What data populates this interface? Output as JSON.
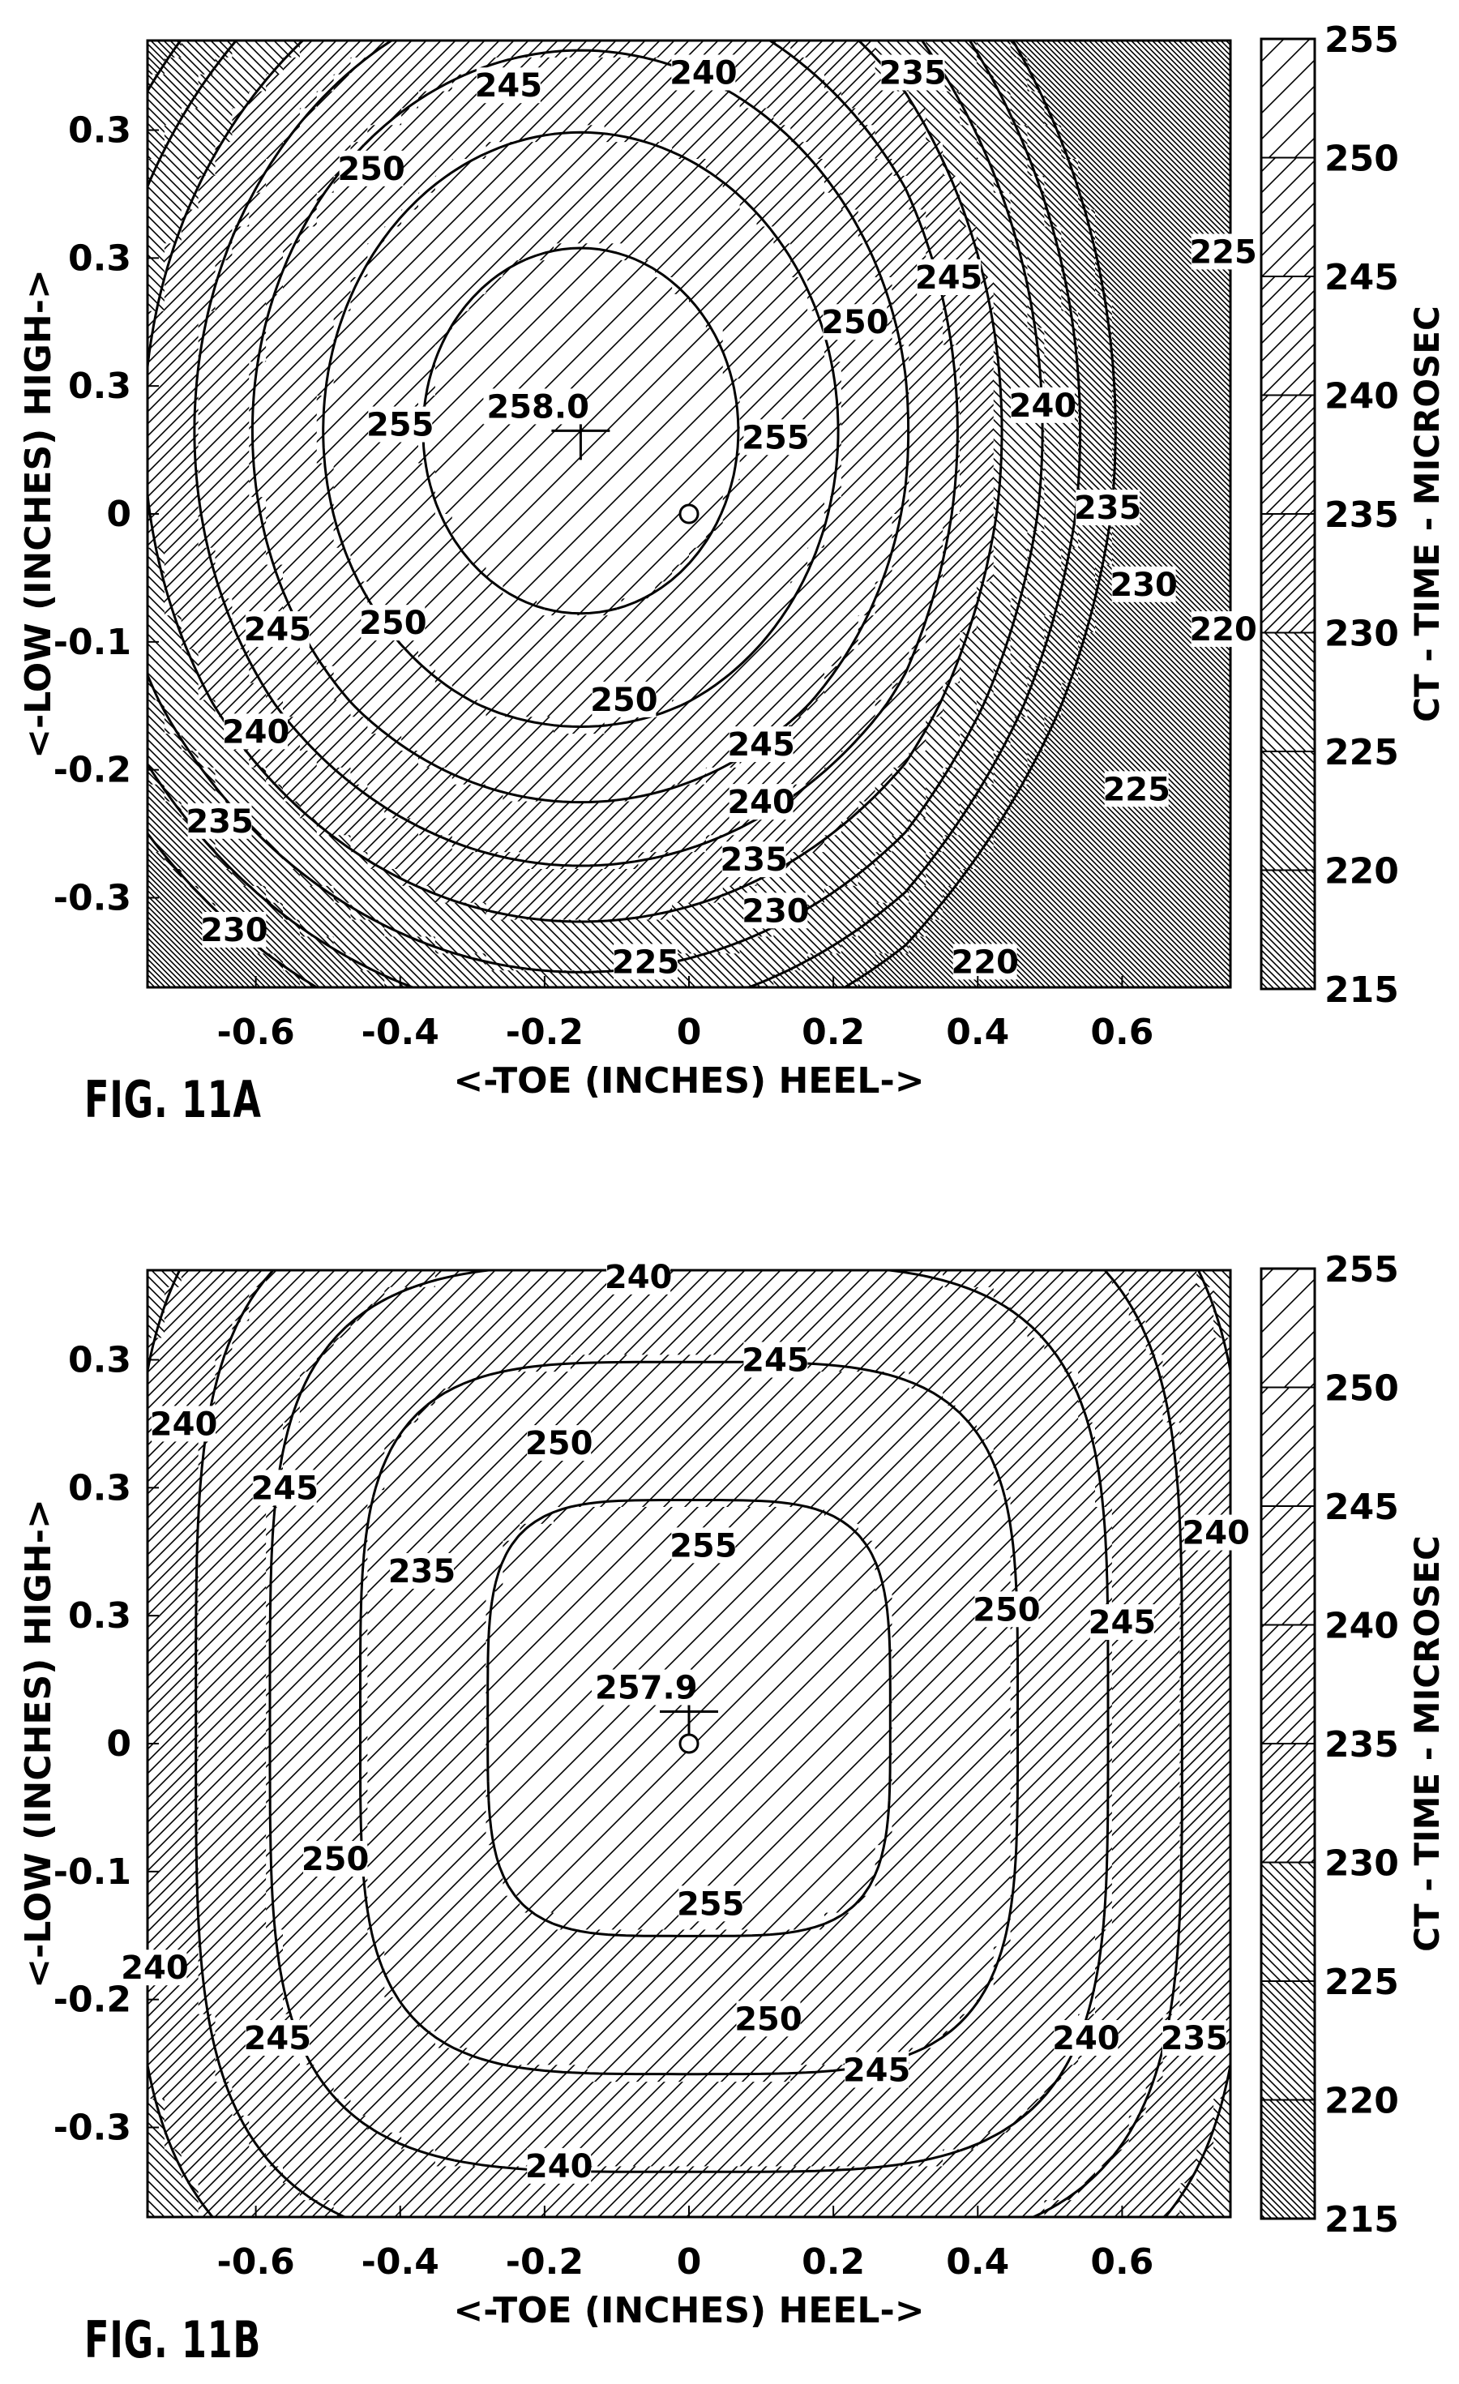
{
  "chart_data": [
    {
      "type": "contour",
      "figure_label": "FIG. 11A",
      "xlabel": "<-TOE (INCHES) HEEL->",
      "ylabel": "<-LOW (INCHES) HIGH->",
      "colorbar_label": "CT - TIME - MICROSEC",
      "x_ticks": [
        "-0.6",
        "-0.4",
        "-0.2",
        "0",
        "0.2",
        "0.4",
        "0.6"
      ],
      "y_ticks": [
        "0.3",
        "0.3",
        "0.3",
        "0",
        "-0.1",
        "-0.2",
        "-0.3"
      ],
      "xlim": [
        -0.75,
        0.75
      ],
      "ylim": [
        -0.37,
        0.37
      ],
      "colorbar_ticks": [
        "255",
        "250",
        "245",
        "240",
        "235",
        "230",
        "225",
        "220",
        "215"
      ],
      "levels": [
        255,
        250,
        245,
        240,
        235,
        230,
        225,
        220
      ],
      "max_label": "258.0",
      "max_point": [
        -0.15,
        0.065
      ],
      "origin_marker": [
        0,
        0
      ],
      "contour_labels": [
        {
          "text": "245",
          "x": -0.25,
          "y": 0.335
        },
        {
          "text": "240",
          "x": 0.02,
          "y": 0.345
        },
        {
          "text": "235",
          "x": 0.31,
          "y": 0.345
        },
        {
          "text": "250",
          "x": -0.44,
          "y": 0.27
        },
        {
          "text": "250",
          "x": 0.23,
          "y": 0.15
        },
        {
          "text": "245",
          "x": 0.36,
          "y": 0.185
        },
        {
          "text": "255",
          "x": -0.4,
          "y": 0.07
        },
        {
          "text": "255",
          "x": 0.12,
          "y": 0.06
        },
        {
          "text": "240",
          "x": 0.49,
          "y": 0.085
        },
        {
          "text": "235",
          "x": 0.58,
          "y": 0.005
        },
        {
          "text": "225",
          "x": 0.74,
          "y": 0.205
        },
        {
          "text": "230",
          "x": 0.63,
          "y": -0.055
        },
        {
          "text": "220",
          "x": 0.74,
          "y": -0.09
        },
        {
          "text": "245",
          "x": -0.57,
          "y": -0.09
        },
        {
          "text": "250",
          "x": -0.41,
          "y": -0.085
        },
        {
          "text": "250",
          "x": -0.09,
          "y": -0.145
        },
        {
          "text": "240",
          "x": -0.6,
          "y": -0.17
        },
        {
          "text": "245",
          "x": 0.1,
          "y": -0.18
        },
        {
          "text": "240",
          "x": 0.1,
          "y": -0.225
        },
        {
          "text": "235",
          "x": -0.65,
          "y": -0.24
        },
        {
          "text": "235",
          "x": 0.09,
          "y": -0.27
        },
        {
          "text": "230",
          "x": 0.12,
          "y": -0.31
        },
        {
          "text": "225",
          "x": 0.62,
          "y": -0.215
        },
        {
          "text": "230",
          "x": -0.63,
          "y": -0.325
        },
        {
          "text": "225",
          "x": -0.06,
          "y": -0.35
        },
        {
          "text": "220",
          "x": 0.41,
          "y": -0.35
        }
      ]
    },
    {
      "type": "contour",
      "figure_label": "FIG. 11B",
      "xlabel": "<-TOE (INCHES) HEEL->",
      "ylabel": "<-LOW (INCHES) HIGH->",
      "colorbar_label": "CT - TIME - MICROSEC",
      "x_ticks": [
        "-0.6",
        "-0.4",
        "-0.2",
        "0",
        "0.2",
        "0.4",
        "0.6"
      ],
      "y_ticks": [
        "0.3",
        "0.3",
        "0.3",
        "0",
        "-0.1",
        "-0.2",
        "-0.3"
      ],
      "xlim": [
        -0.75,
        0.75
      ],
      "ylim": [
        -0.37,
        0.37
      ],
      "colorbar_ticks": [
        "255",
        "250",
        "245",
        "240",
        "235",
        "230",
        "225",
        "220",
        "215"
      ],
      "levels": [
        255,
        250,
        245,
        240,
        235
      ],
      "max_label": "257.9",
      "max_point": [
        0.0,
        0.025
      ],
      "origin_marker": [
        0,
        0
      ],
      "contour_labels": [
        {
          "text": "240",
          "x": -0.07,
          "y": 0.365
        },
        {
          "text": "245",
          "x": 0.12,
          "y": 0.3
        },
        {
          "text": "250",
          "x": -0.18,
          "y": 0.235
        },
        {
          "text": "240",
          "x": -0.7,
          "y": 0.25
        },
        {
          "text": "245",
          "x": -0.56,
          "y": 0.2
        },
        {
          "text": "235",
          "x": -0.37,
          "y": 0.135
        },
        {
          "text": "255",
          "x": 0.02,
          "y": 0.155
        },
        {
          "text": "250",
          "x": 0.44,
          "y": 0.105
        },
        {
          "text": "245",
          "x": 0.6,
          "y": 0.095
        },
        {
          "text": "240",
          "x": 0.73,
          "y": 0.165
        },
        {
          "text": "257.9",
          "x": -0.09,
          "y": 0.04
        },
        {
          "text": "255",
          "x": 0.03,
          "y": -0.125
        },
        {
          "text": "250",
          "x": -0.49,
          "y": -0.09
        },
        {
          "text": "240",
          "x": -0.74,
          "y": -0.175
        },
        {
          "text": "245",
          "x": -0.57,
          "y": -0.23
        },
        {
          "text": "250",
          "x": 0.11,
          "y": -0.215
        },
        {
          "text": "245",
          "x": 0.26,
          "y": -0.255
        },
        {
          "text": "240",
          "x": 0.55,
          "y": -0.23
        },
        {
          "text": "235",
          "x": 0.7,
          "y": -0.23
        },
        {
          "text": "240",
          "x": -0.18,
          "y": -0.33
        }
      ]
    }
  ]
}
